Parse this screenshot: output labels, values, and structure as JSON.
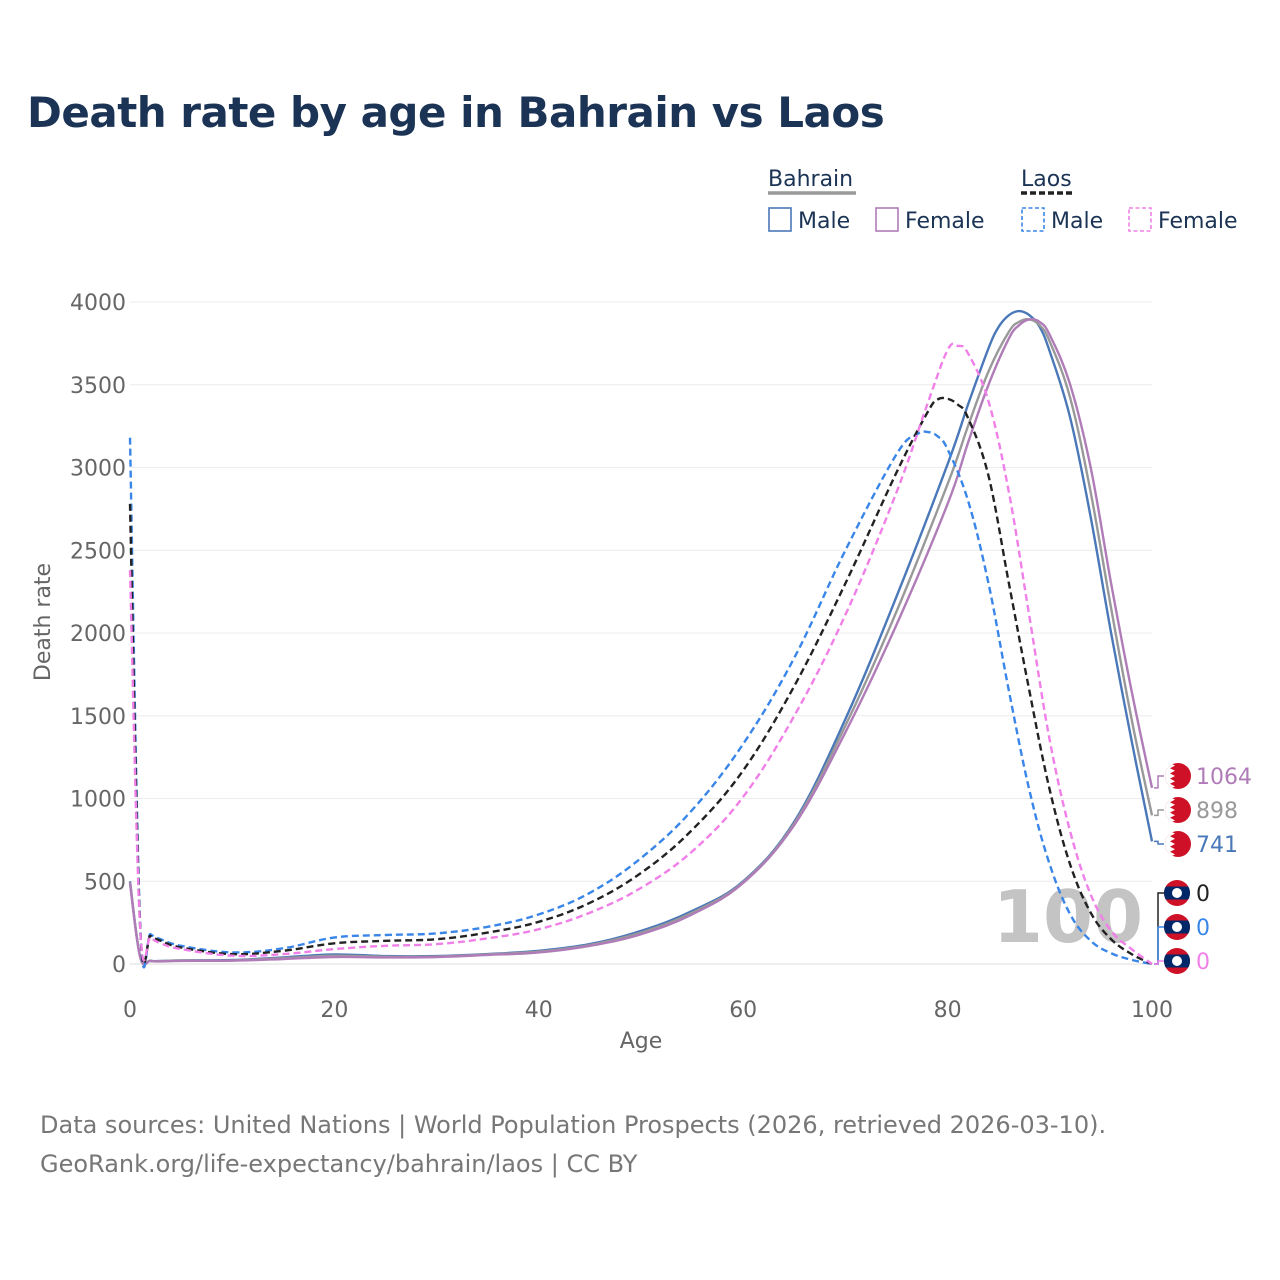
{
  "chart_data": {
    "type": "line",
    "title": "Death rate by age in Bahrain vs Laos",
    "xlabel": "Age",
    "ylabel": "Death rate",
    "xlim": [
      0,
      100
    ],
    "ylim": [
      0,
      4000
    ],
    "xticks": [
      0,
      20,
      40,
      60,
      80,
      100
    ],
    "yticks": [
      0,
      500,
      1000,
      1500,
      2000,
      2500,
      3000,
      3500,
      4000
    ],
    "grid": true,
    "year_label": "100",
    "legend": {
      "groups": [
        {
          "name": "Bahrain",
          "items": [
            "Male",
            "Female"
          ]
        },
        {
          "name": "Laos",
          "items": [
            "Male",
            "Female"
          ]
        }
      ]
    },
    "series": [
      {
        "name": "Bahrain Male",
        "country": "Bahrain",
        "sex": "Male",
        "color": "#4a78b8",
        "dash": false,
        "x": [
          0,
          1,
          2,
          3,
          5,
          10,
          15,
          20,
          25,
          30,
          35,
          40,
          45,
          50,
          55,
          60,
          65,
          70,
          75,
          80,
          82,
          84,
          85,
          86,
          87,
          88,
          89,
          90,
          92,
          94,
          96,
          98,
          100
        ],
        "values": [
          500,
          45,
          20,
          18,
          22,
          24,
          40,
          58,
          48,
          48,
          60,
          80,
          120,
          200,
          320,
          500,
          860,
          1480,
          2220,
          3020,
          3380,
          3720,
          3850,
          3920,
          3945,
          3920,
          3850,
          3700,
          3300,
          2700,
          2000,
          1350,
          741
        ]
      },
      {
        "name": "Bahrain Total",
        "country": "Bahrain",
        "sex": "Total",
        "color": "#999999",
        "dash": false,
        "x": [
          0,
          1,
          2,
          3,
          5,
          10,
          15,
          20,
          25,
          30,
          35,
          40,
          45,
          50,
          55,
          60,
          65,
          70,
          75,
          80,
          82,
          84,
          86,
          87,
          88,
          89,
          90,
          92,
          94,
          96,
          98,
          100
        ],
        "values": [
          495,
          42,
          19,
          17,
          21,
          22,
          35,
          50,
          44,
          45,
          58,
          75,
          115,
          190,
          310,
          495,
          850,
          1440,
          2130,
          2900,
          3250,
          3580,
          3820,
          3880,
          3895,
          3860,
          3760,
          3420,
          2850,
          2150,
          1480,
          898
        ]
      },
      {
        "name": "Bahrain Female",
        "country": "Bahrain",
        "sex": "Female",
        "color": "#b07cb8",
        "dash": false,
        "x": [
          0,
          1,
          2,
          3,
          5,
          10,
          15,
          20,
          25,
          30,
          35,
          40,
          45,
          50,
          55,
          60,
          65,
          70,
          75,
          80,
          82,
          84,
          86,
          87,
          88,
          89,
          90,
          92,
          94,
          96,
          98,
          100
        ],
        "values": [
          490,
          40,
          18,
          16,
          19,
          20,
          30,
          42,
          40,
          42,
          55,
          70,
          110,
          180,
          300,
          490,
          840,
          1400,
          2050,
          2780,
          3150,
          3500,
          3780,
          3860,
          3895,
          3880,
          3800,
          3500,
          3000,
          2300,
          1650,
          1064
        ]
      },
      {
        "name": "Laos Male",
        "country": "Laos",
        "sex": "Male",
        "color": "#3a86e8",
        "dash": true,
        "x": [
          0,
          1,
          2,
          3,
          5,
          10,
          15,
          20,
          25,
          30,
          35,
          40,
          45,
          50,
          55,
          60,
          65,
          70,
          75,
          77,
          78,
          79,
          80,
          82,
          84,
          86,
          88,
          90,
          92,
          94,
          96,
          98,
          100
        ],
        "values": [
          3180,
          230,
          180,
          150,
          110,
          70,
          95,
          160,
          175,
          185,
          225,
          300,
          430,
          640,
          930,
          1330,
          1850,
          2500,
          3080,
          3200,
          3215,
          3190,
          3110,
          2800,
          2300,
          1650,
          1050,
          600,
          300,
          140,
          65,
          25,
          0
        ]
      },
      {
        "name": "Laos Total",
        "country": "Laos",
        "sex": "Total",
        "color": "#222222",
        "dash": true,
        "x": [
          0,
          1,
          2,
          3,
          5,
          10,
          15,
          20,
          25,
          30,
          35,
          40,
          45,
          50,
          55,
          60,
          65,
          70,
          75,
          78,
          79,
          80,
          81,
          82,
          84,
          86,
          88,
          90,
          92,
          94,
          96,
          98,
          100
        ],
        "values": [
          2780,
          220,
          170,
          140,
          100,
          60,
          80,
          125,
          140,
          150,
          190,
          255,
          370,
          550,
          810,
          1170,
          1680,
          2300,
          2970,
          3330,
          3410,
          3415,
          3380,
          3300,
          2950,
          2300,
          1650,
          1050,
          600,
          310,
          150,
          60,
          0
        ]
      },
      {
        "name": "Laos Female",
        "country": "Laos",
        "sex": "Female",
        "color": "#f080e8",
        "dash": true,
        "x": [
          0,
          1,
          2,
          3,
          5,
          10,
          15,
          20,
          25,
          30,
          35,
          40,
          45,
          50,
          55,
          60,
          65,
          70,
          75,
          78,
          80,
          81,
          82,
          84,
          86,
          88,
          90,
          92,
          94,
          96,
          98,
          100
        ],
        "values": [
          2380,
          210,
          160,
          125,
          90,
          50,
          60,
          90,
          110,
          120,
          155,
          210,
          310,
          460,
          680,
          1010,
          1500,
          2110,
          2850,
          3380,
          3710,
          3735,
          3690,
          3400,
          2850,
          2100,
          1350,
          800,
          420,
          200,
          90,
          0
        ]
      }
    ],
    "end_labels": [
      {
        "text": "1064",
        "series": "Bahrain Female",
        "color": "#b07cb8",
        "flag": "bahrain"
      },
      {
        "text": "898",
        "series": "Bahrain Total",
        "color": "#999999",
        "flag": "bahrain"
      },
      {
        "text": "741",
        "series": "Bahrain Male",
        "color": "#4a78b8",
        "flag": "bahrain"
      },
      {
        "text": "0",
        "series": "Laos Total",
        "color": "#222222",
        "flag": "laos"
      },
      {
        "text": "0",
        "series": "Laos Male",
        "color": "#3a86e8",
        "flag": "laos"
      },
      {
        "text": "0",
        "series": "Laos Female",
        "color": "#f080e8",
        "flag": "laos"
      }
    ]
  },
  "footer": {
    "line1": "Data sources: United Nations | World Population Prospects (2026, retrieved 2026-03-10).",
    "line2": "GeoRank.org/life-expectancy/bahrain/laos | CC BY"
  }
}
